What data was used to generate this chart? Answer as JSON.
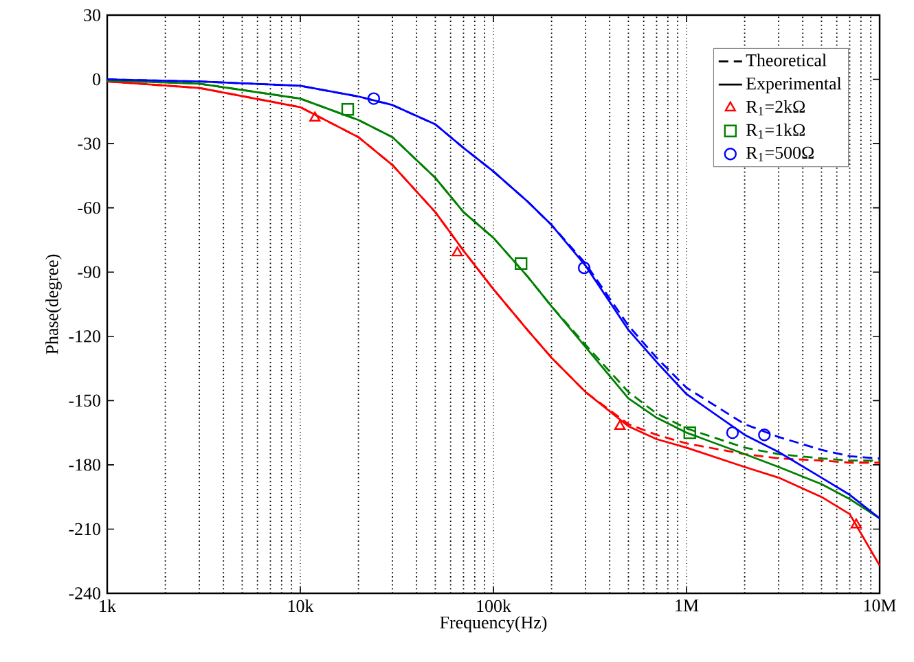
{
  "chart_data": {
    "type": "line",
    "xlabel": "Frequency(Hz)",
    "ylabel": "Phase(degree)",
    "log": "x",
    "grid": "x",
    "legend": "top right",
    "xlim": [
      1000,
      10000000
    ],
    "ylim": [
      -240,
      30
    ],
    "xticks": [
      {
        "value": 1000,
        "label": "1k"
      },
      {
        "value": 10000,
        "label": "10k"
      },
      {
        "value": 100000,
        "label": "100k"
      },
      {
        "value": 1000000,
        "label": "1M"
      },
      {
        "value": 10000000,
        "label": "10M"
      }
    ],
    "yticks": [
      -240,
      -210,
      -180,
      -150,
      -120,
      -90,
      -60,
      -30,
      0,
      30
    ],
    "x": [
      1000,
      3000,
      10000,
      20000,
      30000,
      50000,
      70000,
      100000,
      150000,
      200000,
      300000,
      500000,
      700000,
      1000000,
      2000000,
      3000000,
      5000000,
      7000000,
      10000000
    ],
    "series": [
      {
        "name": "Theoretical",
        "line_style": "dashed",
        "color": "#000000",
        "values": [
          null,
          null,
          null,
          null,
          null,
          null,
          null,
          null,
          null,
          null,
          null,
          null,
          null,
          null,
          null,
          null,
          null,
          null,
          null
        ]
      },
      {
        "name": "Experimental",
        "line_style": "solid",
        "color": "#000000",
        "values": [
          null,
          null,
          null,
          null,
          null,
          null,
          null,
          null,
          null,
          null,
          null,
          null,
          null,
          null,
          null,
          null,
          null,
          null,
          null
        ]
      },
      {
        "type": "line",
        "line_style": "dashed",
        "color": "#ff0000",
        "values": [
          -1,
          -4,
          -13,
          -27,
          -40,
          -62,
          -80,
          -98,
          -117,
          -130,
          -146,
          -161,
          -166,
          -170,
          -175,
          -177,
          -178,
          -179,
          -179
        ]
      },
      {
        "type": "line",
        "line_style": "solid",
        "color": "#ff0000",
        "values": [
          -1,
          -4,
          -13,
          -27,
          -40,
          -62,
          -80,
          -98,
          -117,
          -130,
          -146,
          -162,
          -168,
          -172,
          -181,
          -186,
          -195,
          -203,
          -227
        ]
      },
      {
        "type": "line",
        "line_style": "dashed",
        "color": "#008000",
        "values": [
          -0.5,
          -2,
          -9,
          -19,
          -27,
          -46,
          -62,
          -74,
          -92,
          -106,
          -124,
          -146,
          -156,
          -163,
          -172,
          -175,
          -177,
          -178,
          -178
        ]
      },
      {
        "type": "line",
        "line_style": "solid",
        "color": "#008000",
        "values": [
          -0.5,
          -2,
          -9,
          -19,
          -27,
          -46,
          -62,
          -74,
          -92,
          -106,
          -125,
          -149,
          -158,
          -165,
          -175,
          -181,
          -189,
          -196,
          -205
        ]
      },
      {
        "type": "line",
        "line_style": "dashed",
        "color": "#0000ff",
        "values": [
          0,
          -1,
          -3,
          -8,
          -12,
          -21,
          -32,
          -43,
          -57,
          -68,
          -86,
          -115,
          -130,
          -144,
          -161,
          -167,
          -173,
          -176,
          -177
        ]
      },
      {
        "type": "line",
        "line_style": "solid",
        "color": "#0000ff",
        "values": [
          0,
          -1,
          -3,
          -8,
          -12,
          -21,
          -32,
          -43,
          -57,
          -68,
          -87,
          -117,
          -132,
          -147,
          -166,
          -174,
          -186,
          -194,
          -205
        ]
      },
      {
        "name": "R$_{1}$=2kΩ",
        "type": "scatter",
        "marker": "triangle",
        "color": "#ff0000",
        "x": [
          11900,
          65000,
          452000,
          7560000
        ],
        "values": [
          -18,
          -81,
          -162,
          -208
        ]
      },
      {
        "name": "R$_{1}$=1kΩ",
        "type": "scatter",
        "marker": "square",
        "color": "#008000",
        "x": [
          17600,
          139000,
          1040000
        ],
        "values": [
          -14,
          -86,
          -165
        ]
      },
      {
        "name": "R$_{1}$=500Ω",
        "type": "scatter",
        "marker": "circle",
        "color": "#0000ff",
        "x": [
          24000,
          295000,
          1730000,
          2530000
        ],
        "values": [
          -9,
          -88,
          -165,
          -166
        ]
      }
    ]
  }
}
